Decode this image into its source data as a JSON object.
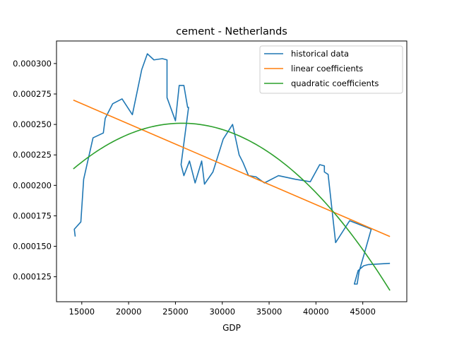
{
  "chart_data": {
    "type": "line",
    "title": "cement - Netherlands",
    "xlabel": "GDP",
    "ylabel": "",
    "xlim": [
      12300,
      49700
    ],
    "ylim": [
      0.0001045,
      0.0003185
    ],
    "x_ticks": [
      15000,
      20000,
      25000,
      30000,
      35000,
      40000,
      45000
    ],
    "x_tick_labels": [
      "15000",
      "20000",
      "25000",
      "30000",
      "35000",
      "40000",
      "45000"
    ],
    "y_ticks": [
      0.000125,
      0.00015,
      0.000175,
      0.0002,
      0.000225,
      0.00025,
      0.000275,
      0.0003
    ],
    "y_tick_labels": [
      "0.000125",
      "0.000150",
      "0.000175",
      "0.000200",
      "0.000225",
      "0.000250",
      "0.000275",
      "0.000300"
    ],
    "legend_position": "top-right",
    "grid": false,
    "series": [
      {
        "name": "historical data",
        "color": "#1f77b4",
        "points": [
          [
            14300,
            0.000158
          ],
          [
            14200,
            0.000164
          ],
          [
            14900,
            0.00017
          ],
          [
            15200,
            0.000205
          ],
          [
            16200,
            0.000239
          ],
          [
            17300,
            0.000243
          ],
          [
            17500,
            0.000255
          ],
          [
            18300,
            0.000267
          ],
          [
            19300,
            0.000271
          ],
          [
            20400,
            0.000258
          ],
          [
            21400,
            0.000295
          ],
          [
            22000,
            0.000308
          ],
          [
            22700,
            0.000303
          ],
          [
            23600,
            0.000304
          ],
          [
            24100,
            0.000303
          ],
          [
            24100,
            0.000272
          ],
          [
            25000,
            0.000253
          ],
          [
            25400,
            0.000282
          ],
          [
            25900,
            0.000282
          ],
          [
            26300,
            0.000264
          ],
          [
            26400,
            0.000264
          ],
          [
            25600,
            0.000217
          ],
          [
            25900,
            0.000208
          ],
          [
            26500,
            0.00022
          ],
          [
            27100,
            0.000202
          ],
          [
            27800,
            0.00022
          ],
          [
            28100,
            0.000201
          ],
          [
            29000,
            0.000211
          ],
          [
            30100,
            0.000238
          ],
          [
            31100,
            0.00025
          ],
          [
            31800,
            0.000225
          ],
          [
            32200,
            0.000219
          ],
          [
            32800,
            0.000208
          ],
          [
            33600,
            0.000207
          ],
          [
            34500,
            0.000202
          ],
          [
            36000,
            0.000208
          ],
          [
            37800,
            0.000205
          ],
          [
            39400,
            0.000203
          ],
          [
            40400,
            0.000217
          ],
          [
            40900,
            0.000216
          ],
          [
            40900,
            0.000211
          ],
          [
            41300,
            0.000209
          ],
          [
            42100,
            0.000153
          ],
          [
            43600,
            0.000171
          ],
          [
            45600,
            0.000165
          ],
          [
            45900,
            0.000164
          ],
          [
            45200,
            0.000145
          ],
          [
            44600,
            0.000129
          ],
          [
            44400,
            0.000119
          ],
          [
            44100,
            0.000119
          ],
          [
            44500,
            0.00013
          ],
          [
            45100,
            0.000134
          ],
          [
            45600,
            0.000135
          ],
          [
            47900,
            0.000136
          ]
        ]
      },
      {
        "name": "linear coefficients",
        "color": "#ff7f0e",
        "points": [
          [
            14100,
            0.00027
          ],
          [
            47900,
            0.000158
          ]
        ]
      },
      {
        "name": "quadratic coefficients",
        "color": "#2ca02c",
        "quadratic": {
          "peak_x": 25700,
          "peak_y": 0.000251,
          "x_start": 14100,
          "x_end": 47900,
          "y_start": 0.000214,
          "y_end": 0.000112
        }
      }
    ]
  }
}
